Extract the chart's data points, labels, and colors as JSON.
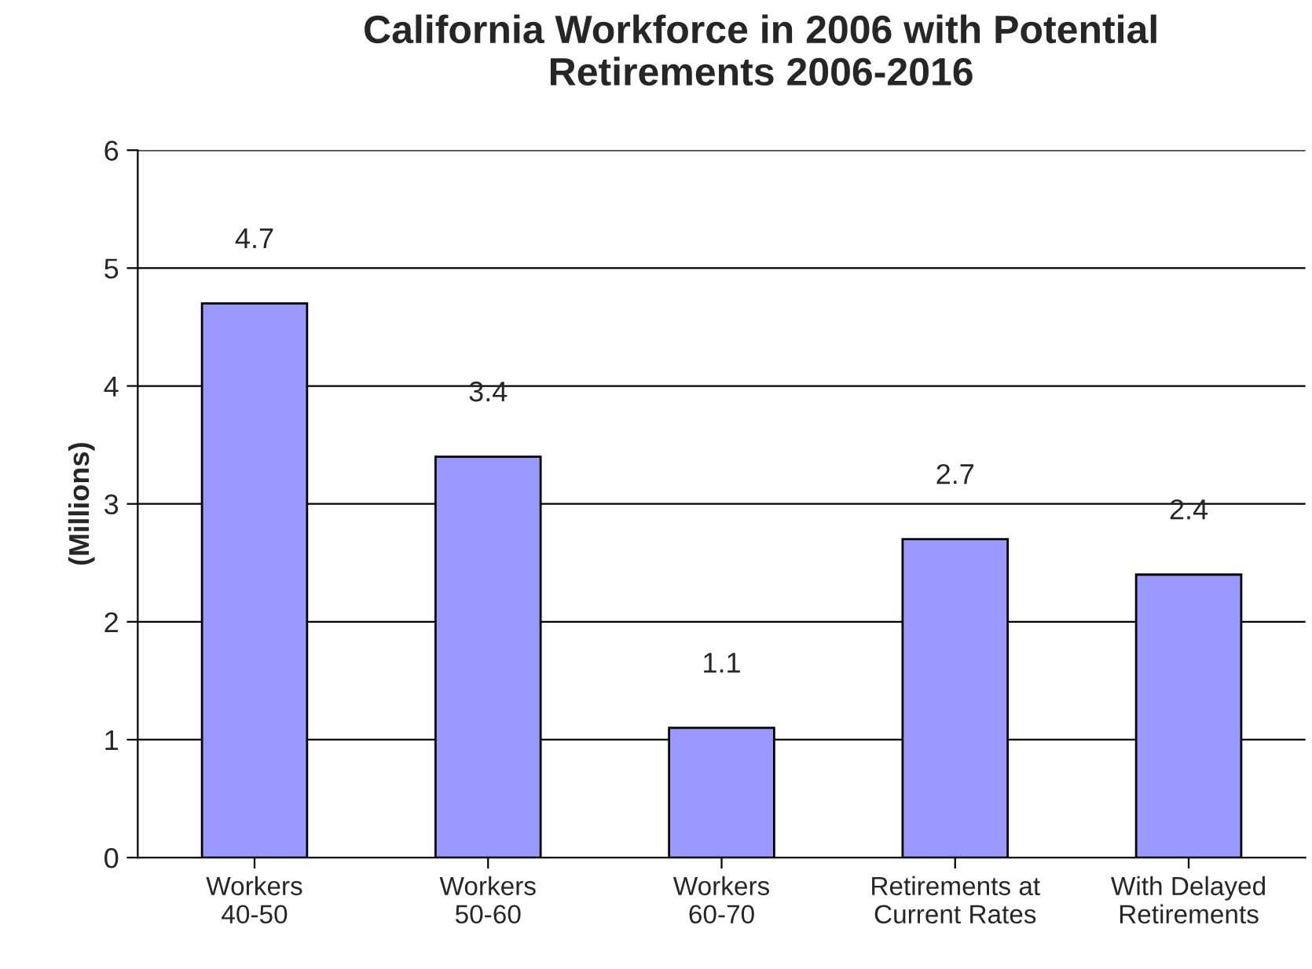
{
  "chart_data": {
    "type": "bar",
    "title": "California Workforce in 2006 with Potential\nRetirements 2006-2016",
    "ylabel": "(Millions)",
    "categories": [
      "Workers\n40-50",
      "Workers\n50-60",
      "Workers\n60-70",
      "Retirements at\nCurrent Rates",
      "With Delayed\nRetirements"
    ],
    "values": [
      4.7,
      3.4,
      1.1,
      2.7,
      2.4
    ],
    "color": "#9999ff",
    "ylim": [
      0,
      6
    ],
    "yticks": [
      0,
      1,
      2,
      3,
      4,
      5,
      6
    ],
    "grid": "y",
    "data_labels": true,
    "legend": false
  }
}
